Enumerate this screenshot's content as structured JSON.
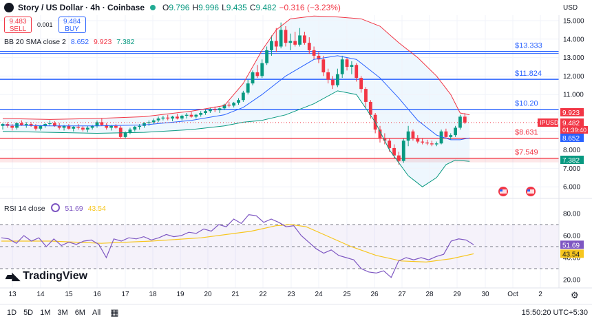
{
  "header": {
    "title": "Story / US Dollar · 4h · Coinbase",
    "o_label": "O",
    "o_value": "9.796",
    "h_label": "H",
    "h_value": "9.996",
    "l_label": "L",
    "l_value": "9.435",
    "c_label": "C",
    "c_value": "9.482",
    "change": "−0.316 (−3.23%)"
  },
  "trade": {
    "sell_price": "9.483",
    "sell_label": "SELL",
    "spread": "0.001",
    "buy_price": "9.484",
    "buy_label": "BUY"
  },
  "bb_legend": {
    "label": "BB 20 SMA close 2",
    "basis": "8.652",
    "upper": "9.923",
    "lower": "7.382"
  },
  "rsi_legend": {
    "label": "RSI 14 close",
    "rsi": "51.69",
    "ma": "43.54"
  },
  "currency": "USD",
  "branding": "TradingView",
  "timeframes": [
    "1D",
    "5D",
    "1M",
    "3M",
    "6M",
    "All"
  ],
  "clock": "15:50:20 UTC+5:30",
  "colors": {
    "up": "#089981",
    "down": "#f23645",
    "bb": "#2196f3",
    "rsi": "#7e57c2",
    "rsi_ma": "#f7c61e",
    "level": "#2962ff"
  },
  "icons": [
    "calendar-range-icon",
    "gear-icon",
    "flag-icon"
  ],
  "chart_data": [
    {
      "type": "candlestick",
      "x_ticks": [
        "13",
        "14",
        "15",
        "16",
        "17",
        "18",
        "19",
        "20",
        "21",
        "22",
        "23",
        "24",
        "25",
        "26",
        "27",
        "28",
        "29",
        "30",
        "Oct",
        "2"
      ],
      "y_ticks": [
        "15.000",
        "14.000",
        "13.000",
        "12.000",
        "11.000",
        "10.000",
        "9.000",
        "8.000",
        "7.000",
        "6.000"
      ],
      "ylim": [
        5.5,
        15.4
      ],
      "candles": [
        [
          9.3,
          9.45,
          9.1,
          9.4
        ],
        [
          9.4,
          9.5,
          9.2,
          9.3
        ],
        [
          9.3,
          9.4,
          9.05,
          9.2
        ],
        [
          9.2,
          9.5,
          9.1,
          9.45
        ],
        [
          9.45,
          9.6,
          9.3,
          9.35
        ],
        [
          9.35,
          9.5,
          9.2,
          9.4
        ],
        [
          9.4,
          9.5,
          9.25,
          9.3
        ],
        [
          9.3,
          9.4,
          9.05,
          9.15
        ],
        [
          9.15,
          9.35,
          9.05,
          9.3
        ],
        [
          9.3,
          9.45,
          9.2,
          9.4
        ],
        [
          9.4,
          9.6,
          9.3,
          9.45
        ],
        [
          9.45,
          9.55,
          9.25,
          9.3
        ],
        [
          9.3,
          9.45,
          9.1,
          9.2
        ],
        [
          9.2,
          9.35,
          9.05,
          9.3
        ],
        [
          9.3,
          9.4,
          9.1,
          9.15
        ],
        [
          9.15,
          9.3,
          9.0,
          9.25
        ],
        [
          9.25,
          9.4,
          9.1,
          9.2
        ],
        [
          9.2,
          9.3,
          9.0,
          9.1
        ],
        [
          9.1,
          9.3,
          8.95,
          9.2
        ],
        [
          9.2,
          9.35,
          9.1,
          9.3
        ],
        [
          9.3,
          9.6,
          9.2,
          9.5
        ],
        [
          9.5,
          9.7,
          9.3,
          9.35
        ],
        [
          9.35,
          9.45,
          9.1,
          9.2
        ],
        [
          9.2,
          9.35,
          9.05,
          9.3
        ],
        [
          9.3,
          9.4,
          9.15,
          9.2
        ],
        [
          9.2,
          9.3,
          8.6,
          8.7
        ],
        [
          8.7,
          9.0,
          8.6,
          8.95
        ],
        [
          8.95,
          9.2,
          8.85,
          9.1
        ],
        [
          9.1,
          9.3,
          9.0,
          9.25
        ],
        [
          9.25,
          9.4,
          9.1,
          9.3
        ],
        [
          9.3,
          9.5,
          9.2,
          9.45
        ],
        [
          9.45,
          9.6,
          9.3,
          9.5
        ],
        [
          9.5,
          9.7,
          9.4,
          9.6
        ],
        [
          9.6,
          9.8,
          9.5,
          9.7
        ],
        [
          9.7,
          9.85,
          9.6,
          9.75
        ],
        [
          9.75,
          9.9,
          9.6,
          9.7
        ],
        [
          9.7,
          9.85,
          9.55,
          9.8
        ],
        [
          9.8,
          9.95,
          9.65,
          9.7
        ],
        [
          9.7,
          9.9,
          9.6,
          9.85
        ],
        [
          9.85,
          10.0,
          9.7,
          9.9
        ],
        [
          9.9,
          10.05,
          9.75,
          9.8
        ],
        [
          9.8,
          9.95,
          9.7,
          9.9
        ],
        [
          9.9,
          10.1,
          9.8,
          10.0
        ],
        [
          10.0,
          10.2,
          9.9,
          10.1
        ],
        [
          10.1,
          10.3,
          10.0,
          10.2
        ],
        [
          10.2,
          10.35,
          10.05,
          10.15
        ],
        [
          10.15,
          10.3,
          10.0,
          10.25
        ],
        [
          10.25,
          10.5,
          10.15,
          10.45
        ],
        [
          10.45,
          10.6,
          10.3,
          10.4
        ],
        [
          10.4,
          10.6,
          10.3,
          10.55
        ],
        [
          10.55,
          10.8,
          10.45,
          10.7
        ],
        [
          10.7,
          11.2,
          10.6,
          11.1
        ],
        [
          11.1,
          11.8,
          11.0,
          11.6
        ],
        [
          11.6,
          12.3,
          11.5,
          12.2
        ],
        [
          12.2,
          12.6,
          11.9,
          12.0
        ],
        [
          12.0,
          12.9,
          11.9,
          12.7
        ],
        [
          12.7,
          13.6,
          12.6,
          13.4
        ],
        [
          13.4,
          14.2,
          13.1,
          13.9
        ],
        [
          13.9,
          14.6,
          13.3,
          13.6
        ],
        [
          13.6,
          14.9,
          13.5,
          14.5
        ],
        [
          14.5,
          14.7,
          13.6,
          13.8
        ],
        [
          13.8,
          14.3,
          13.4,
          13.9
        ],
        [
          13.9,
          14.4,
          13.6,
          13.7
        ],
        [
          13.7,
          14.6,
          13.6,
          14.2
        ],
        [
          14.2,
          14.4,
          13.7,
          13.8
        ],
        [
          13.8,
          14.1,
          13.2,
          13.4
        ],
        [
          13.4,
          13.6,
          12.9,
          13.1
        ],
        [
          13.1,
          13.3,
          12.7,
          12.9
        ],
        [
          12.9,
          13.1,
          12.0,
          12.2
        ],
        [
          12.2,
          12.4,
          11.6,
          11.8
        ],
        [
          11.8,
          12.0,
          11.3,
          11.5
        ],
        [
          11.5,
          12.4,
          11.4,
          12.1
        ],
        [
          12.1,
          13.1,
          11.9,
          12.9
        ],
        [
          12.9,
          13.0,
          12.3,
          12.5
        ],
        [
          12.5,
          12.8,
          12.1,
          12.6
        ],
        [
          12.6,
          12.7,
          11.7,
          11.9
        ],
        [
          11.9,
          12.0,
          11.1,
          11.3
        ],
        [
          11.3,
          11.4,
          10.3,
          10.6
        ],
        [
          10.6,
          10.7,
          9.7,
          9.9
        ],
        [
          9.9,
          10.0,
          8.9,
          9.1
        ],
        [
          9.1,
          9.3,
          8.4,
          8.6
        ],
        [
          8.6,
          8.9,
          8.3,
          8.5
        ],
        [
          8.5,
          8.6,
          7.9,
          8.1
        ],
        [
          8.1,
          8.3,
          7.5,
          7.7
        ],
        [
          7.7,
          7.9,
          7.2,
          7.4
        ],
        [
          7.4,
          8.6,
          7.3,
          8.5
        ],
        [
          8.5,
          9.3,
          8.2,
          9.0
        ],
        [
          9.0,
          9.1,
          8.5,
          8.6
        ],
        [
          8.6,
          8.8,
          8.35,
          8.45
        ],
        [
          8.45,
          8.6,
          8.3,
          8.4
        ],
        [
          8.4,
          8.55,
          8.25,
          8.35
        ],
        [
          8.35,
          8.5,
          8.2,
          8.3
        ],
        [
          8.3,
          8.45,
          8.2,
          8.35
        ],
        [
          8.35,
          9.1,
          8.3,
          9.0
        ],
        [
          9.0,
          9.15,
          8.6,
          8.7
        ],
        [
          8.7,
          8.9,
          8.55,
          8.8
        ],
        [
          8.8,
          9.3,
          8.7,
          9.2
        ],
        [
          9.2,
          9.9,
          9.1,
          9.8
        ],
        [
          9.8,
          10.0,
          9.4,
          9.48
        ]
      ],
      "bb_upper": [
        [
          0,
          9.7
        ],
        [
          10,
          9.65
        ],
        [
          20,
          9.7
        ],
        [
          30,
          9.8
        ],
        [
          40,
          10.1
        ],
        [
          47,
          10.4
        ],
        [
          51,
          11.6
        ],
        [
          55,
          13.4
        ],
        [
          58,
          14.5
        ],
        [
          61,
          15.1
        ],
        [
          66,
          15.25
        ],
        [
          71,
          15.2
        ],
        [
          76,
          15.1
        ],
        [
          80,
          14.7
        ],
        [
          84,
          13.8
        ],
        [
          88,
          13.0
        ],
        [
          92,
          12.0
        ],
        [
          95,
          11.0
        ],
        [
          97,
          10.0
        ],
        [
          99,
          9.9
        ]
      ],
      "bb_basis": [
        [
          0,
          9.35
        ],
        [
          10,
          9.3
        ],
        [
          20,
          9.3
        ],
        [
          30,
          9.35
        ],
        [
          40,
          9.6
        ],
        [
          47,
          9.9
        ],
        [
          51,
          10.3
        ],
        [
          55,
          11.0
        ],
        [
          60,
          12.0
        ],
        [
          66,
          12.9
        ],
        [
          71,
          13.1
        ],
        [
          75,
          12.9
        ],
        [
          80,
          11.9
        ],
        [
          84,
          10.8
        ],
        [
          88,
          9.6
        ],
        [
          92,
          8.8
        ],
        [
          95,
          8.55
        ],
        [
          97,
          8.55
        ],
        [
          99,
          8.65
        ]
      ],
      "bb_lower": [
        [
          0,
          9.0
        ],
        [
          10,
          8.95
        ],
        [
          20,
          8.9
        ],
        [
          30,
          8.95
        ],
        [
          40,
          9.1
        ],
        [
          47,
          9.3
        ],
        [
          51,
          9.5
        ],
        [
          55,
          9.6
        ],
        [
          60,
          9.9
        ],
        [
          66,
          10.5
        ],
        [
          71,
          11.2
        ],
        [
          75,
          11.0
        ],
        [
          79,
          9.5
        ],
        [
          82,
          8.0
        ],
        [
          86,
          6.6
        ],
        [
          89,
          6.0
        ],
        [
          92,
          6.5
        ],
        [
          94,
          7.2
        ],
        [
          96,
          7.45
        ],
        [
          99,
          7.38
        ]
      ],
      "horizontal_levels": [
        {
          "value": 13.333,
          "label": "$13.333",
          "color": "#2962ff"
        },
        {
          "value": 11.824,
          "label": "$11.824",
          "color": "#2962ff"
        },
        {
          "value": 10.2,
          "label": "$10.20",
          "color": "#2962ff"
        },
        {
          "value": 8.631,
          "label": "$8.631",
          "color": "#f23645"
        },
        {
          "value": 7.549,
          "label": "$7.549",
          "color": "#f23645"
        }
      ],
      "price_tags": [
        {
          "value": 9.923,
          "text": "9.923",
          "color": "#f23645"
        },
        {
          "value": 9.482,
          "text": "9.482",
          "color": "#f23645"
        },
        {
          "value": 9.482,
          "text": "IPUSD",
          "color": "#f23645"
        },
        {
          "value": 9.482,
          "text": "01:39:40",
          "color": "#f23645"
        },
        {
          "value": 8.652,
          "text": "8.652",
          "color": "#2962ff"
        },
        {
          "value": 7.382,
          "text": "7.382",
          "color": "#089981"
        }
      ]
    },
    {
      "type": "line",
      "y_ticks": [
        "80.00",
        "60.00",
        "40.00",
        "20.00"
      ],
      "ylim": [
        16,
        86
      ],
      "overbought": 70,
      "oversold": 30,
      "rsi": [
        [
          0,
          58
        ],
        [
          3,
          57
        ],
        [
          6,
          53
        ],
        [
          9,
          60
        ],
        [
          12,
          55
        ],
        [
          15,
          58
        ],
        [
          18,
          50
        ],
        [
          21,
          57
        ],
        [
          24,
          51
        ],
        [
          27,
          54
        ],
        [
          30,
          52
        ],
        [
          33,
          55
        ],
        [
          36,
          56
        ],
        [
          39,
          52
        ],
        [
          42,
          40
        ],
        [
          45,
          57
        ],
        [
          48,
          55
        ],
        [
          51,
          58
        ],
        [
          54,
          57
        ],
        [
          57,
          59
        ],
        [
          60,
          56
        ],
        [
          63,
          58
        ],
        [
          66,
          61
        ],
        [
          69,
          59
        ],
        [
          72,
          60
        ],
        [
          75,
          63
        ],
        [
          78,
          62
        ],
        [
          81,
          66
        ],
        [
          84,
          64
        ],
        [
          87,
          70
        ],
        [
          90,
          68
        ],
        [
          93,
          75
        ],
        [
          96,
          71
        ],
        [
          99,
          79
        ],
        [
          102,
          78
        ],
        [
          105,
          72
        ],
        [
          108,
          75
        ],
        [
          111,
          72
        ],
        [
          114,
          68
        ],
        [
          117,
          69
        ],
        [
          120,
          60
        ],
        [
          123,
          54
        ],
        [
          126,
          48
        ],
        [
          129,
          44
        ],
        [
          132,
          47
        ],
        [
          135,
          42
        ],
        [
          138,
          40
        ],
        [
          141,
          38
        ],
        [
          144,
          30
        ],
        [
          147,
          27
        ],
        [
          150,
          26
        ],
        [
          153,
          28
        ],
        [
          156,
          22
        ],
        [
          159,
          37
        ],
        [
          162,
          40
        ],
        [
          165,
          38
        ],
        [
          168,
          40
        ],
        [
          171,
          38
        ],
        [
          174,
          41
        ],
        [
          177,
          43
        ],
        [
          180,
          55
        ],
        [
          183,
          57
        ],
        [
          186,
          56
        ],
        [
          189,
          51.7
        ]
      ],
      "rsi_ma": [
        [
          0,
          55
        ],
        [
          20,
          55
        ],
        [
          40,
          53
        ],
        [
          60,
          55
        ],
        [
          80,
          58
        ],
        [
          100,
          64
        ],
        [
          110,
          69
        ],
        [
          116,
          70
        ],
        [
          122,
          68
        ],
        [
          130,
          60
        ],
        [
          140,
          50
        ],
        [
          150,
          42
        ],
        [
          160,
          37
        ],
        [
          170,
          36
        ],
        [
          180,
          39
        ],
        [
          189,
          43.5
        ]
      ]
    }
  ]
}
